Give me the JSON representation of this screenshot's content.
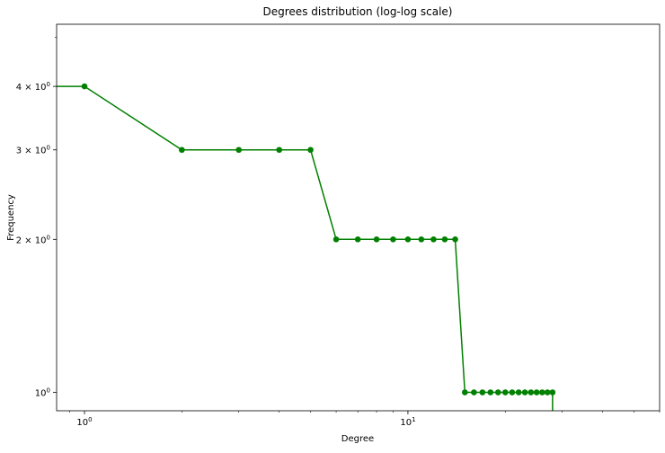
{
  "chart_data": {
    "type": "line",
    "title": "Degrees distribution (log-log scale)",
    "xlabel": "Degree",
    "ylabel": "Frequency",
    "xscale": "log",
    "yscale": "log",
    "xlim": [
      0.82,
      60
    ],
    "ylim": [
      0.92,
      5.3
    ],
    "grid": false,
    "legend": "none",
    "x_ticks": [
      {
        "value": 1,
        "base": "10",
        "exp": "0"
      },
      {
        "value": 10,
        "base": "10",
        "exp": "1"
      }
    ],
    "y_ticks": [
      {
        "value": 1,
        "mant": "",
        "base": "10",
        "exp": "0"
      },
      {
        "value": 2,
        "mant": "2 × ",
        "base": "10",
        "exp": "0"
      },
      {
        "value": 3,
        "mant": "3 × ",
        "base": "10",
        "exp": "0"
      },
      {
        "value": 4,
        "mant": "4 × ",
        "base": "10",
        "exp": "0"
      }
    ],
    "series": [
      {
        "color": "#008000",
        "marker": "circle",
        "x": [
          1,
          2,
          3,
          4,
          5,
          6,
          7,
          8,
          9,
          10,
          11,
          12,
          13,
          14,
          15,
          16,
          17,
          18,
          19,
          20,
          21,
          22,
          23,
          24,
          25,
          26,
          27,
          28
        ],
        "y": [
          4,
          3,
          3,
          3,
          3,
          2,
          2,
          2,
          2,
          2,
          2,
          2,
          2,
          2,
          1,
          1,
          1,
          1,
          1,
          1,
          1,
          1,
          1,
          1,
          1,
          1,
          1,
          1
        ]
      }
    ]
  }
}
